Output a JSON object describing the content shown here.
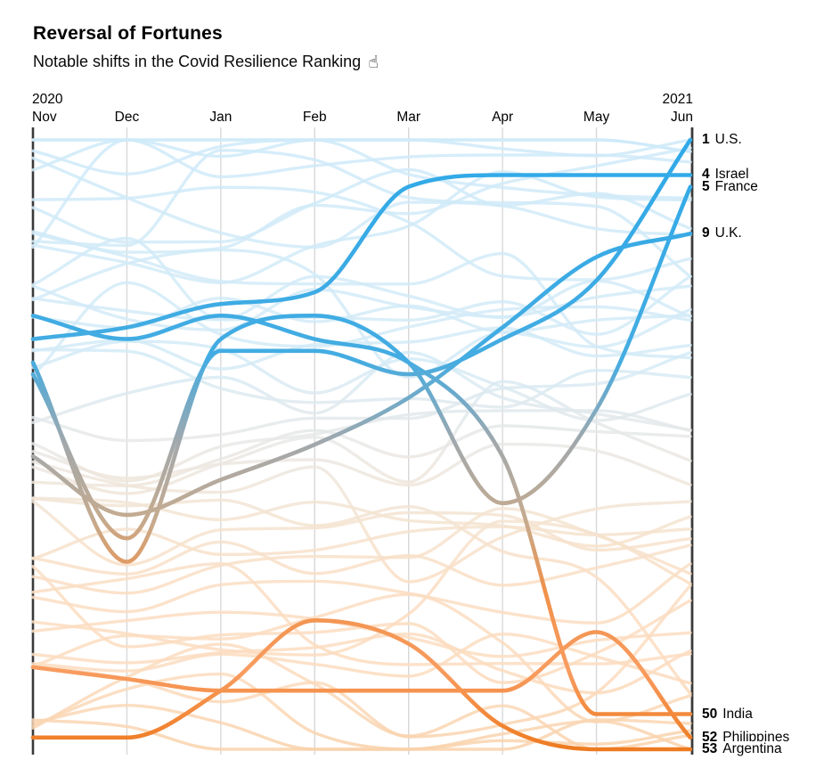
{
  "header": {
    "title": "Reversal of Fortunes",
    "subtitle": "Notable shifts in the Covid Resilience Ranking",
    "interactive_icon": "☝"
  },
  "axis": {
    "top_left_year": "2020",
    "top_right_year": "2021",
    "months": [
      "Nov",
      "Dec",
      "Jan",
      "Feb",
      "Mar",
      "Apr",
      "May",
      "Jun"
    ]
  },
  "chart_data": {
    "type": "line",
    "title": "Reversal of Fortunes",
    "subtitle": "Notable shifts in the Covid Resilience Ranking",
    "x": [
      "Nov 2020",
      "Dec 2020",
      "Jan 2021",
      "Feb 2021",
      "Mar 2021",
      "Apr 2021",
      "May 2021",
      "Jun 2021"
    ],
    "rank_axis": {
      "min": 1,
      "max": 53,
      "inverted": true,
      "gridlines": "vertical-monthly"
    },
    "series": [
      {
        "name": "U.S.",
        "end_rank": 1,
        "values": [
          21,
          35,
          19,
          19,
          21,
          18,
          13,
          1
        ]
      },
      {
        "name": "Israel",
        "end_rank": 4,
        "values": [
          18,
          17,
          15,
          14,
          5,
          4,
          4,
          4
        ]
      },
      {
        "name": "France",
        "end_rank": 5,
        "values": [
          20,
          37,
          18,
          16,
          20,
          32,
          24,
          5
        ]
      },
      {
        "name": "U.K.",
        "end_rank": 9,
        "values": [
          28,
          33,
          30,
          27,
          23,
          17,
          11,
          9
        ]
      },
      {
        "name": "India",
        "end_rank": 50,
        "values": [
          16,
          18,
          16,
          18,
          20,
          28,
          50,
          50
        ]
      },
      {
        "name": "Philippines",
        "end_rank": 52,
        "values": [
          46,
          47,
          48,
          48,
          48,
          48,
          43,
          52
        ]
      },
      {
        "name": "Argentina",
        "end_rank": 53,
        "values": [
          52,
          52,
          48,
          42,
          44,
          51,
          53,
          53
        ]
      }
    ],
    "background": {
      "count": 45,
      "top_flat_series": [
        1,
        1,
        1,
        1,
        1,
        1,
        1,
        2
      ]
    },
    "colors": {
      "strong_blue": "#2fa9e8",
      "strong_gray": "#a3a8ab",
      "strong_orange": "#ee7b21",
      "pale_blue": "#cfeaf9",
      "pale_gray": "#e9e8e6",
      "pale_orange": "#fbddc2",
      "gridline": "#d8d8d8",
      "axis": "#3a3a3a"
    },
    "legend_position": "right-edge-labels"
  }
}
